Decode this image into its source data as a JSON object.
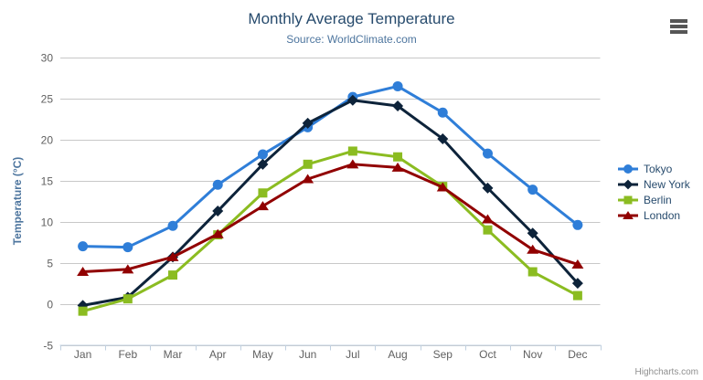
{
  "credits": "Highcharts.com",
  "icons": {
    "export_menu": "hamburger-icon"
  },
  "palette": {
    "title_color": "#274b6d",
    "subtitle_color": "#4d759e",
    "axis_label_color": "#606060",
    "axis_line_color": "#c0d0e0",
    "grid_color": "#c8c8c8",
    "legend_text_color": "#274b6d",
    "credits_color": "#8f8f8f"
  },
  "chart_data": {
    "type": "line",
    "title": "Monthly Average Temperature",
    "subtitle": "Source: WorldClimate.com",
    "categories": [
      "Jan",
      "Feb",
      "Mar",
      "Apr",
      "May",
      "Jun",
      "Jul",
      "Aug",
      "Sep",
      "Oct",
      "Nov",
      "Dec"
    ],
    "xlabel": "",
    "ylabel": "Temperature (°C)",
    "ylim": [
      -5,
      30
    ],
    "ytick_interval": 5,
    "grid": true,
    "legend_position": "right",
    "series": [
      {
        "name": "Tokyo",
        "color": "#2f7ed8",
        "marker": "circle",
        "values": [
          7.0,
          6.9,
          9.5,
          14.5,
          18.2,
          21.5,
          25.2,
          26.5,
          23.3,
          18.3,
          13.9,
          9.6
        ]
      },
      {
        "name": "New York",
        "color": "#0d233a",
        "marker": "diamond",
        "values": [
          -0.2,
          0.8,
          5.7,
          11.3,
          17.0,
          22.0,
          24.8,
          24.1,
          20.1,
          14.1,
          8.6,
          2.5
        ]
      },
      {
        "name": "Berlin",
        "color": "#8bbc21",
        "marker": "square",
        "values": [
          -0.9,
          0.6,
          3.5,
          8.4,
          13.5,
          17.0,
          18.6,
          17.9,
          14.3,
          9.0,
          3.9,
          1.0
        ]
      },
      {
        "name": "London",
        "color": "#910000",
        "marker": "triangle",
        "values": [
          3.9,
          4.2,
          5.7,
          8.5,
          11.9,
          15.2,
          17.0,
          16.6,
          14.2,
          10.3,
          6.6,
          4.8
        ]
      }
    ]
  }
}
